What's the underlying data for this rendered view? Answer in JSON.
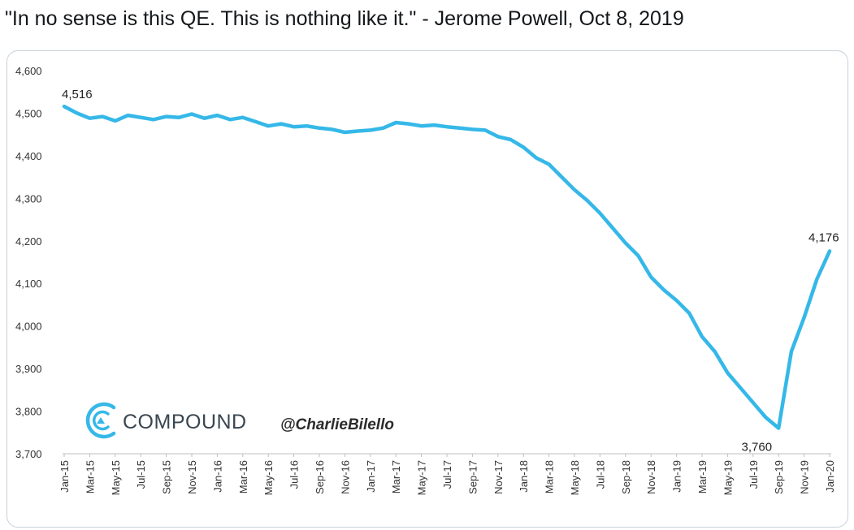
{
  "tweet": {
    "text": "\"In no sense is this QE. This is nothing like it.\" - Jerome Powell, Oct 8, 2019"
  },
  "branding": {
    "logo_text": "COMPOUND",
    "handle": "@CharlieBilello",
    "logo_icon": "compound-c-logo-icon",
    "logo_color": "#35b8e8"
  },
  "chart_data": {
    "type": "line",
    "title": "",
    "xlabel": "",
    "ylabel": "",
    "ylim": [
      3700,
      4600
    ],
    "yticks": [
      "4,600",
      "4,500",
      "4,400",
      "4,300",
      "4,200",
      "4,100",
      "4,000",
      "3,900",
      "3,800",
      "3,700"
    ],
    "xtick_labels": [
      "Jan-15",
      "Mar-15",
      "May-15",
      "Jul-15",
      "Sep-15",
      "Nov-15",
      "Jan-16",
      "Mar-16",
      "May-16",
      "Jul-16",
      "Sep-16",
      "Nov-16",
      "Jan-17",
      "Mar-17",
      "May-17",
      "Jul-17",
      "Sep-17",
      "Nov-17",
      "Jan-18",
      "Mar-18",
      "May-18",
      "Jul-18",
      "Sep-18",
      "Nov-18",
      "Jan-19",
      "Mar-19",
      "May-19",
      "Jul-19",
      "Sep-19",
      "Nov-19",
      "Jan-20"
    ],
    "grid": false,
    "line_color": "#35b8e8",
    "series": [
      {
        "name": "",
        "x": [
          "Jan-15",
          "Feb-15",
          "Mar-15",
          "Apr-15",
          "May-15",
          "Jun-15",
          "Jul-15",
          "Aug-15",
          "Sep-15",
          "Oct-15",
          "Nov-15",
          "Dec-15",
          "Jan-16",
          "Feb-16",
          "Mar-16",
          "Apr-16",
          "May-16",
          "Jun-16",
          "Jul-16",
          "Aug-16",
          "Sep-16",
          "Oct-16",
          "Nov-16",
          "Dec-16",
          "Jan-17",
          "Feb-17",
          "Mar-17",
          "Apr-17",
          "May-17",
          "Jun-17",
          "Jul-17",
          "Aug-17",
          "Sep-17",
          "Oct-17",
          "Nov-17",
          "Dec-17",
          "Jan-18",
          "Feb-18",
          "Mar-18",
          "Apr-18",
          "May-18",
          "Jun-18",
          "Jul-18",
          "Aug-18",
          "Sep-18",
          "Oct-18",
          "Nov-18",
          "Dec-18",
          "Jan-19",
          "Feb-19",
          "Mar-19",
          "Apr-19",
          "May-19",
          "Jun-19",
          "Jul-19",
          "Aug-19",
          "Sep-19",
          "Oct-19",
          "Nov-19",
          "Dec-19",
          "Jan-20"
        ],
        "values": [
          4516,
          4500,
          4488,
          4492,
          4482,
          4495,
          4490,
          4485,
          4492,
          4490,
          4498,
          4488,
          4495,
          4485,
          4490,
          4480,
          4470,
          4475,
          4468,
          4470,
          4465,
          4462,
          4455,
          4458,
          4460,
          4465,
          4478,
          4475,
          4470,
          4472,
          4468,
          4465,
          4462,
          4460,
          4445,
          4438,
          4420,
          4395,
          4380,
          4350,
          4320,
          4295,
          4265,
          4230,
          4195,
          4165,
          4115,
          4085,
          4060,
          4030,
          3975,
          3940,
          3890,
          3855,
          3820,
          3785,
          3760,
          3940,
          4020,
          4110,
          4176
        ]
      }
    ],
    "annotations": [
      {
        "x": "Jan-15",
        "y": 4516,
        "text": "4,516"
      },
      {
        "x": "Aug-19",
        "y": 3760,
        "text": "3,760"
      },
      {
        "x": "Jan-20",
        "y": 4176,
        "text": "4,176"
      }
    ]
  }
}
